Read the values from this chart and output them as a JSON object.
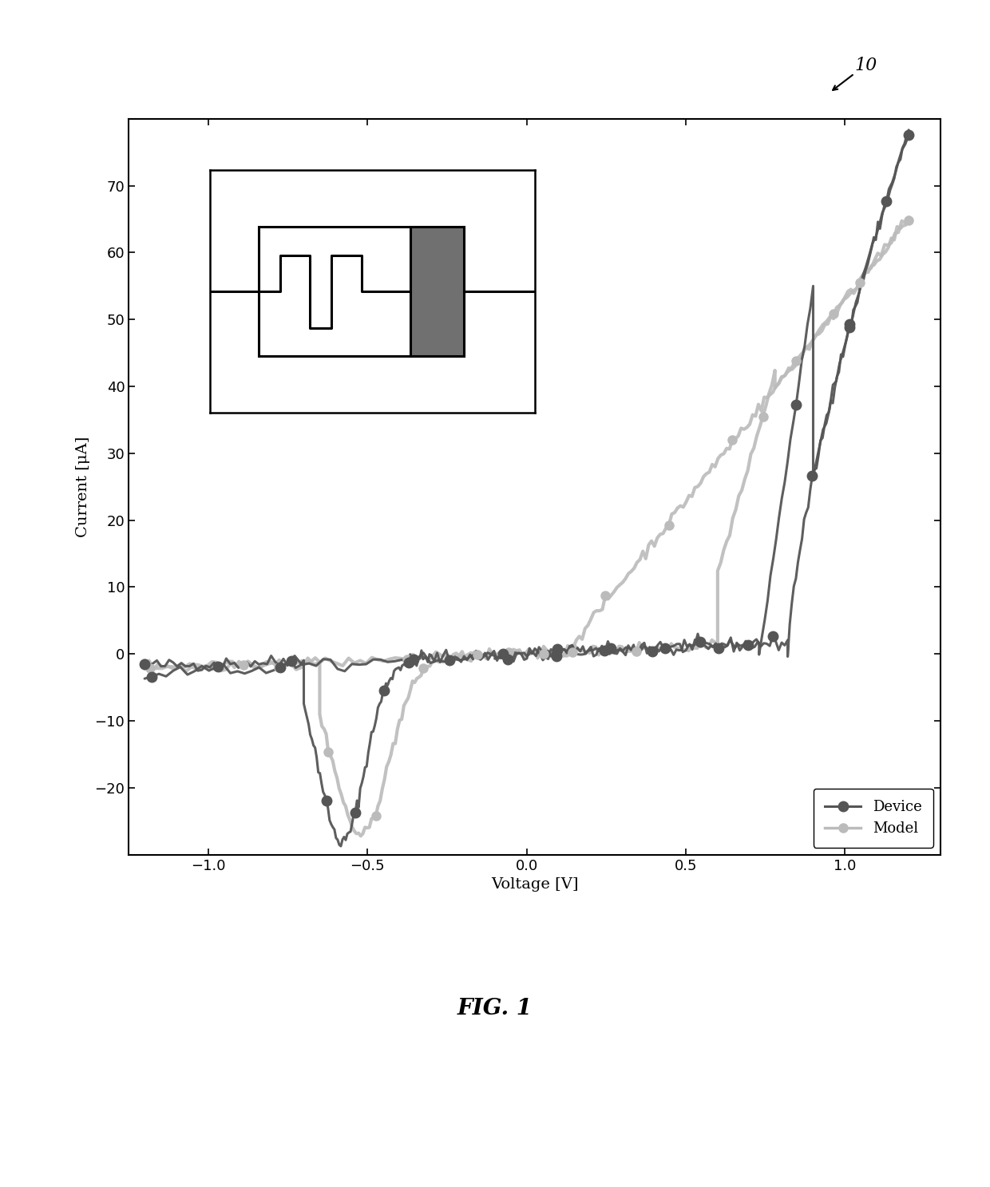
{
  "xlabel": "Voltage [V]",
  "ylabel": "Current [μA]",
  "fig_label": "FIG. 1",
  "annotation": "10",
  "xlim": [
    -1.25,
    1.3
  ],
  "ylim": [
    -30,
    80
  ],
  "xticks": [
    -1.0,
    -0.5,
    0,
    0.5,
    1.0
  ],
  "yticks": [
    -20,
    -10,
    0,
    10,
    20,
    30,
    40,
    50,
    60,
    70
  ],
  "device_color": "#555555",
  "model_color": "#bbbbbb",
  "legend_fontsize": 13,
  "axis_fontsize": 14,
  "tick_fontsize": 13,
  "fig_label_fontsize": 20,
  "background_color": "#ffffff"
}
